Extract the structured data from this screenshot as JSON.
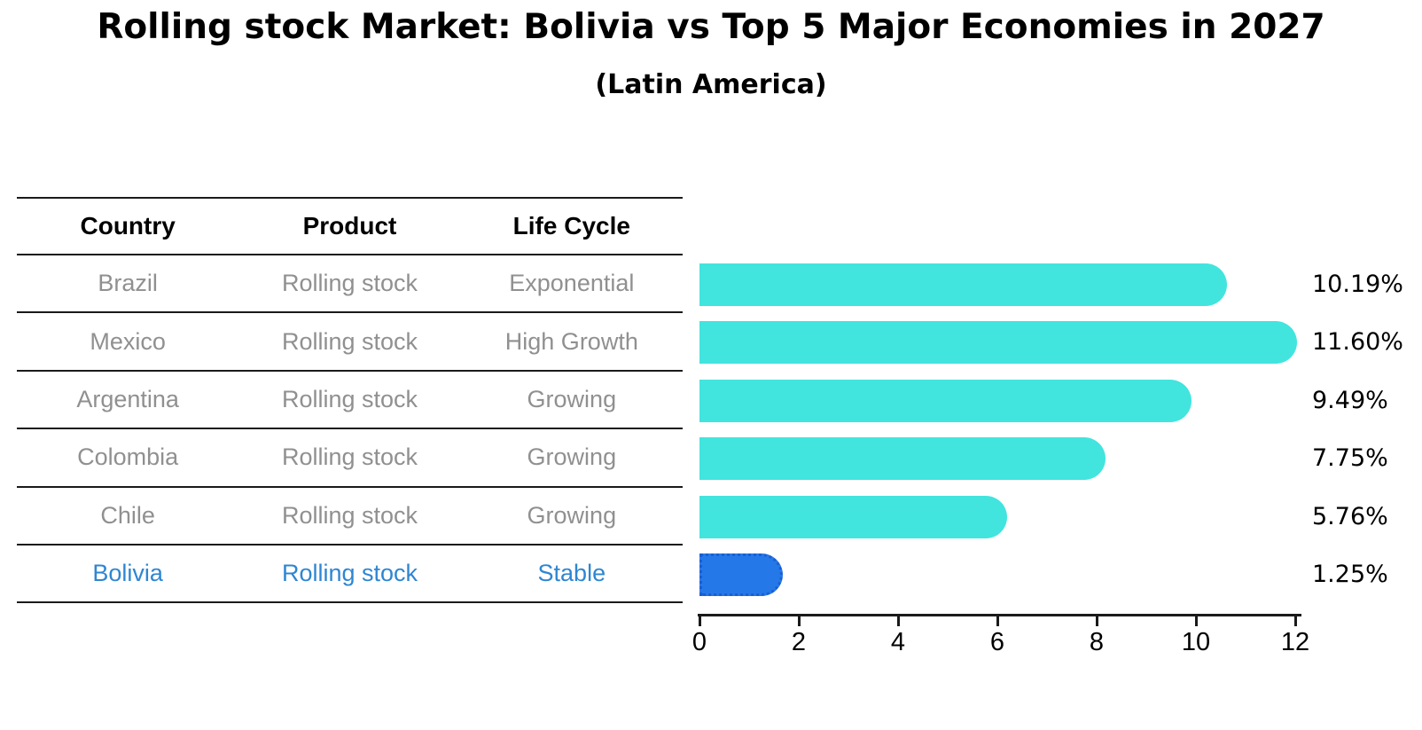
{
  "title": "Rolling stock Market: Bolivia vs Top 5 Major Economies in 2027",
  "subtitle": "(Latin America)",
  "table": {
    "headers": [
      "Country",
      "Product",
      "Life Cycle"
    ],
    "rows": [
      {
        "country": "Brazil",
        "product": "Rolling stock",
        "life_cycle": "Exponential",
        "highlight": false
      },
      {
        "country": "Mexico",
        "product": "Rolling stock",
        "life_cycle": "High Growth",
        "highlight": false
      },
      {
        "country": "Argentina",
        "product": "Rolling stock",
        "life_cycle": "Growing",
        "highlight": false
      },
      {
        "country": "Colombia",
        "product": "Rolling stock",
        "life_cycle": "Growing",
        "highlight": false
      },
      {
        "country": "Chile",
        "product": "Rolling stock",
        "life_cycle": "Growing",
        "highlight": false
      },
      {
        "country": "Bolivia",
        "product": "Rolling stock",
        "life_cycle": "Stable",
        "highlight": true
      }
    ]
  },
  "chart_data": {
    "type": "bar",
    "orientation": "horizontal",
    "title": "Rolling stock Market: Bolivia vs Top 5 Major Economies in 2027",
    "subtitle": "(Latin America)",
    "categories": [
      "Brazil",
      "Mexico",
      "Argentina",
      "Colombia",
      "Chile",
      "Bolivia"
    ],
    "values": [
      10.19,
      11.6,
      9.49,
      7.75,
      5.76,
      1.25
    ],
    "value_labels": [
      "10.19%",
      "11.60%",
      "9.49%",
      "7.75%",
      "5.76%",
      "1.25%"
    ],
    "xlim": [
      0,
      12
    ],
    "x_ticks": [
      0,
      2,
      4,
      6,
      8,
      10,
      12
    ],
    "grid": false,
    "legend": "none",
    "highlight_index": 5
  },
  "colors": {
    "bar_default": "#42e4de",
    "bar_highlight": "#2578e8",
    "bar_highlight_border": "#1a5fd0",
    "highlight_text": "#2e86d2",
    "row_text": "#909090",
    "axis": "#1a1a1a"
  }
}
